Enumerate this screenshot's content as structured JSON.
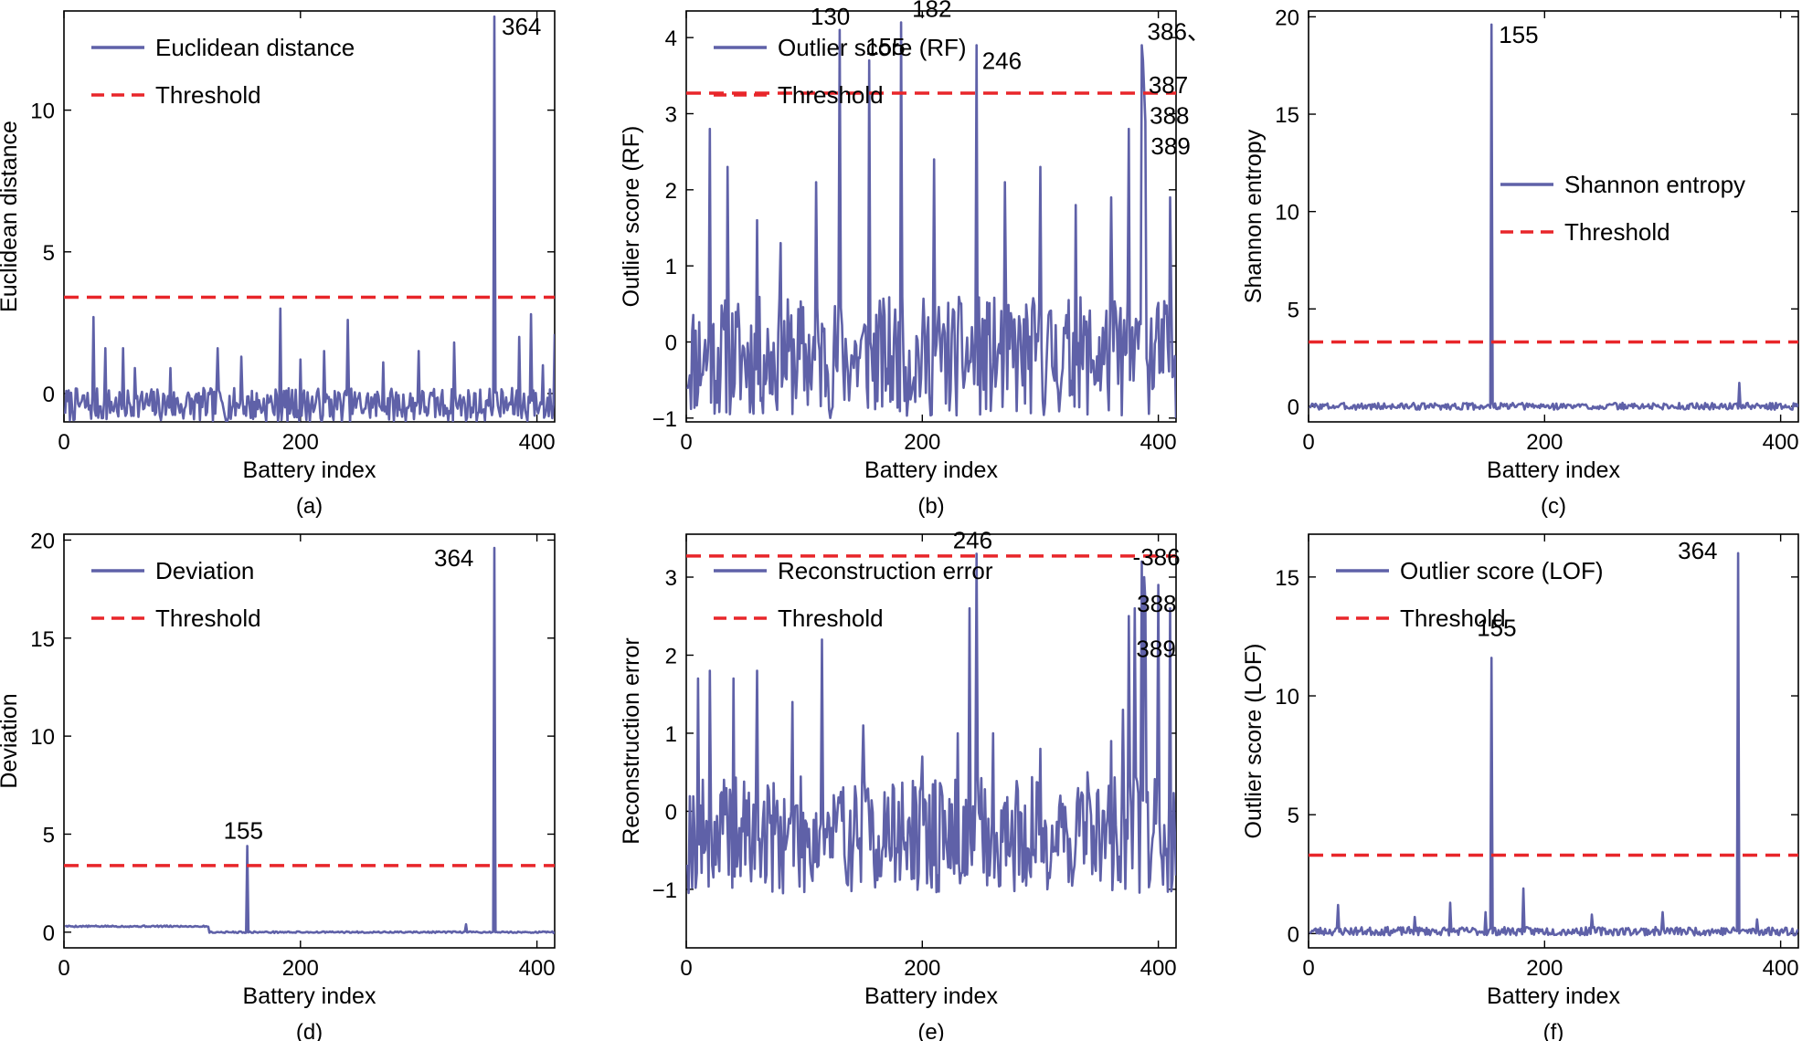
{
  "chart_data": [
    {
      "type": "line",
      "panel_label": "(a)",
      "xlabel": "Battery index",
      "ylabel": "Euclidean distance",
      "xlim": [
        0,
        415
      ],
      "ylim": [
        -1,
        13.5
      ],
      "xticks": [
        "0",
        "200",
        "400"
      ],
      "xtick_values": [
        0,
        200,
        400
      ],
      "yticks": [
        "0",
        "5",
        "10"
      ],
      "ytick_values": [
        0,
        5,
        10
      ],
      "legend_position": "top-left",
      "legend": [
        "Euclidean distance",
        "Threshold"
      ],
      "series": [
        {
          "name": "Euclidean distance",
          "color": "#5f61a8",
          "baseline": -0.4,
          "amplitude": 1.2,
          "seed": 7,
          "spikes": [
            [
              25,
              2.7
            ],
            [
              35,
              1.6
            ],
            [
              50,
              1.6
            ],
            [
              60,
              0.9
            ],
            [
              90,
              0.9
            ],
            [
              130,
              1.6
            ],
            [
              150,
              1.3
            ],
            [
              183,
              3.0
            ],
            [
              200,
              1.2
            ],
            [
              220,
              1.5
            ],
            [
              240,
              2.6
            ],
            [
              270,
              1.1
            ],
            [
              300,
              1.5
            ],
            [
              330,
              1.8
            ],
            [
              364,
              13.3
            ],
            [
              385,
              2.0
            ],
            [
              395,
              2.8
            ],
            [
              405,
              1.0
            ],
            [
              415,
              2.1
            ]
          ]
        }
      ],
      "threshold": {
        "name": "Threshold",
        "value": 3.4,
        "color": "#e8262a"
      },
      "annotations": [
        {
          "text": "364",
          "x": 364,
          "y": 13.3
        }
      ]
    },
    {
      "type": "line",
      "panel_label": "(b)",
      "xlabel": "Battery index",
      "ylabel": "Outlier score (RF)",
      "xlim": [
        0,
        415
      ],
      "ylim": [
        -1.05,
        4.35
      ],
      "xticks": [
        "0",
        "200",
        "400"
      ],
      "xtick_values": [
        0,
        200,
        400
      ],
      "yticks": [
        "−1",
        "0",
        "1",
        "2",
        "3",
        "4"
      ],
      "ytick_values": [
        -1,
        0,
        1,
        2,
        3,
        4
      ],
      "legend_position": "top-left",
      "legend": [
        "Outlier score (RF)",
        "Threshold"
      ],
      "series": [
        {
          "name": "Outlier score (RF)",
          "color": "#5f61a8",
          "baseline": -0.2,
          "amplitude": 1.6,
          "seed": 11,
          "spikes": [
            [
              20,
              2.8
            ],
            [
              35,
              2.3
            ],
            [
              60,
              1.6
            ],
            [
              80,
              1.3
            ],
            [
              110,
              2.1
            ],
            [
              130,
              4.1
            ],
            [
              155,
              3.7
            ],
            [
              182,
              4.2
            ],
            [
              210,
              2.4
            ],
            [
              246,
              3.9
            ],
            [
              270,
              2.1
            ],
            [
              300,
              2.3
            ],
            [
              330,
              1.8
            ],
            [
              360,
              1.9
            ],
            [
              375,
              2.8
            ],
            [
              386,
              3.9
            ],
            [
              387,
              3.7
            ],
            [
              388,
              3.3
            ],
            [
              389,
              2.9
            ],
            [
              410,
              1.9
            ]
          ]
        }
      ],
      "threshold": {
        "name": "Threshold",
        "value": 3.27,
        "color": "#e8262a"
      },
      "annotations": [
        {
          "text": "130",
          "x": 130,
          "y": 4.1
        },
        {
          "text": "155",
          "x": 155,
          "y": 3.7
        },
        {
          "text": "182",
          "x": 182,
          "y": 4.2
        },
        {
          "text": "246",
          "x": 246,
          "y": 3.9
        },
        {
          "text": "386、",
          "x": 386,
          "y": 3.9
        },
        {
          "text": "387",
          "x": 387,
          "y": 3.7
        },
        {
          "text": "388",
          "x": 388,
          "y": 3.3
        },
        {
          "text": "389",
          "x": 389,
          "y": 2.9
        }
      ]
    },
    {
      "type": "line",
      "panel_label": "(c)",
      "xlabel": "Battery index",
      "ylabel": "Shannon entropy",
      "xlim": [
        0,
        415
      ],
      "ylim": [
        -0.8,
        20.3
      ],
      "xticks": [
        "0",
        "200",
        "400"
      ],
      "xtick_values": [
        0,
        200,
        400
      ],
      "yticks": [
        "0",
        "5",
        "10",
        "15",
        "20"
      ],
      "ytick_values": [
        0,
        5,
        10,
        15,
        20
      ],
      "legend_position": "center-right",
      "legend": [
        "Shannon entropy",
        "Threshold"
      ],
      "series": [
        {
          "name": "Shannon entropy",
          "color": "#5f61a8",
          "baseline": 0.0,
          "amplitude": 0.35,
          "seed": 3,
          "spikes": [
            [
              155,
              19.6
            ],
            [
              365,
              1.2
            ]
          ]
        }
      ],
      "threshold": {
        "name": "Threshold",
        "value": 3.3,
        "color": "#e8262a"
      },
      "annotations": [
        {
          "text": "155",
          "x": 155,
          "y": 19.6
        }
      ]
    },
    {
      "type": "line",
      "panel_label": "(d)",
      "xlabel": "Battery index",
      "ylabel": "Deviation",
      "xlim": [
        0,
        415
      ],
      "ylim": [
        -0.8,
        20.3
      ],
      "xticks": [
        "0",
        "200",
        "400"
      ],
      "xtick_values": [
        0,
        200,
        400
      ],
      "yticks": [
        "0",
        "5",
        "10",
        "15",
        "20"
      ],
      "ytick_values": [
        0,
        5,
        10,
        15,
        20
      ],
      "legend_position": "top-left",
      "legend": [
        "Deviation",
        "Threshold"
      ],
      "series": [
        {
          "name": "Deviation",
          "color": "#5f61a8",
          "baseline": 0.3,
          "amplitude": 0.08,
          "seed": 5,
          "drop_after": 122,
          "drop_to": 0.0,
          "spikes": [
            [
              155,
              4.4
            ],
            [
              364,
              19.6
            ],
            [
              340,
              0.4
            ]
          ]
        }
      ],
      "threshold": {
        "name": "Threshold",
        "value": 3.4,
        "color": "#e8262a"
      },
      "annotations": [
        {
          "text": "155",
          "x": 155,
          "y": 4.4
        },
        {
          "text": "364",
          "x": 364,
          "y": 19.6
        }
      ]
    },
    {
      "type": "line",
      "panel_label": "(e)",
      "xlabel": "Battery index",
      "ylabel": "Reconstruction error",
      "xlim": [
        0,
        415
      ],
      "ylim": [
        -1.75,
        3.55
      ],
      "xticks": [
        "0",
        "200",
        "400"
      ],
      "xtick_values": [
        0,
        200,
        400
      ],
      "yticks": [
        "−1",
        "0",
        "1",
        "2",
        "3"
      ],
      "ytick_values": [
        -1,
        0,
        1,
        2,
        3
      ],
      "legend_position": "top-left",
      "legend": [
        "Reconstruction error",
        "Threshold"
      ],
      "series": [
        {
          "name": "Reconstruction error",
          "color": "#5f61a8",
          "baseline": -0.3,
          "amplitude": 1.5,
          "seed": 19,
          "spikes": [
            [
              10,
              1.7
            ],
            [
              20,
              1.8
            ],
            [
              40,
              1.7
            ],
            [
              60,
              1.8
            ],
            [
              90,
              1.4
            ],
            [
              115,
              2.2
            ],
            [
              150,
              1.1
            ],
            [
              200,
              0.7
            ],
            [
              230,
              1.0
            ],
            [
              240,
              2.6
            ],
            [
              246,
              3.3
            ],
            [
              260,
              1.0
            ],
            [
              300,
              0.8
            ],
            [
              340,
              0.5
            ],
            [
              360,
              0.9
            ],
            [
              370,
              1.3
            ],
            [
              375,
              2.5
            ],
            [
              380,
              2.6
            ],
            [
              386,
              3.2
            ],
            [
              388,
              3.0
            ],
            [
              389,
              2.7
            ],
            [
              400,
              2.9
            ],
            [
              410,
              2.6
            ]
          ]
        }
      ],
      "threshold": {
        "name": "Threshold",
        "value": 3.27,
        "color": "#e8262a"
      },
      "annotations": [
        {
          "text": "246",
          "x": 246,
          "y": 3.3
        },
        {
          "text": "-386",
          "x": 386,
          "y": 3.2
        },
        {
          "text": "388",
          "x": 388,
          "y": 3.0
        },
        {
          "text": "389",
          "x": 389,
          "y": 2.7
        }
      ]
    },
    {
      "type": "line",
      "panel_label": "(f)",
      "xlabel": "Battery index",
      "ylabel": "Outlier score (LOF)",
      "xlim": [
        0,
        415
      ],
      "ylim": [
        -0.6,
        16.8
      ],
      "xticks": [
        "0",
        "200",
        "400"
      ],
      "xtick_values": [
        0,
        200,
        400
      ],
      "yticks": [
        "0",
        "5",
        "10",
        "15"
      ],
      "ytick_values": [
        0,
        5,
        10,
        15
      ],
      "legend_position": "top-left",
      "legend": [
        "Outlier score (LOF)",
        "Threshold"
      ],
      "series": [
        {
          "name": "Outlier score (LOF)",
          "color": "#5f61a8",
          "baseline": 0.1,
          "amplitude": 0.35,
          "seed": 23,
          "spikes": [
            [
              25,
              1.2
            ],
            [
              90,
              0.7
            ],
            [
              120,
              1.3
            ],
            [
              150,
              0.9
            ],
            [
              155,
              11.6
            ],
            [
              182,
              1.9
            ],
            [
              240,
              0.8
            ],
            [
              300,
              0.9
            ],
            [
              364,
              16.0
            ],
            [
              380,
              0.6
            ]
          ]
        }
      ],
      "threshold": {
        "name": "Threshold",
        "value": 3.3,
        "color": "#e8262a"
      },
      "annotations": [
        {
          "text": "155",
          "x": 155,
          "y": 11.6
        },
        {
          "text": "364",
          "x": 364,
          "y": 16.0
        }
      ]
    }
  ]
}
